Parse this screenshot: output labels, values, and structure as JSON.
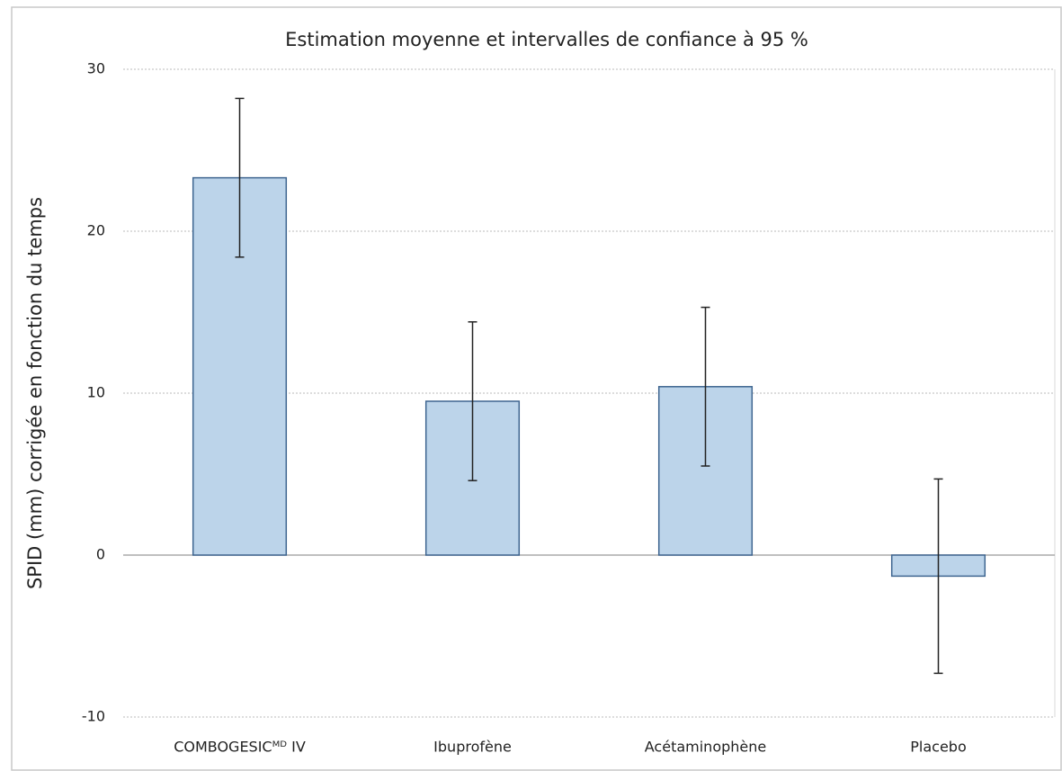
{
  "chart_data": {
    "type": "bar",
    "title": "Estimation moyenne et intervalles de confiance à 95 %",
    "y_label": "SPID (mm) corrigée en fonction du temps",
    "categories": [
      "COMBOGESICᴹᴰ IV",
      "Ibuprofène",
      "Acétaminophène",
      "Placebo"
    ],
    "values": [
      23.3,
      9.5,
      10.4,
      -1.3
    ],
    "error": [
      4.9,
      4.9,
      4.9,
      6.0
    ],
    "color": "#bcd4ea",
    "edge_color": "#3e6590",
    "ylim": [
      -10,
      30
    ],
    "yticks": [
      -10,
      0,
      10,
      20,
      30
    ],
    "grid": true
  }
}
